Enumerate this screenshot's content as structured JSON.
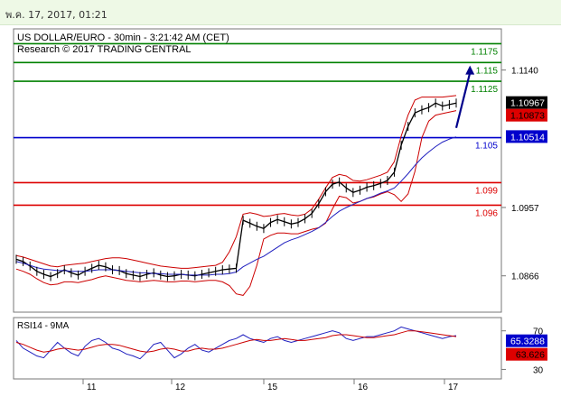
{
  "header": {
    "date_text": "พ.ค. 17, 2017, 01:21"
  },
  "chart_data": [
    {
      "type": "line",
      "title": "US DOLLAR/EURO - 30min - 3:21:42 AM (CET)",
      "subtitle": "Research © 2017 TRADING CENTRAL",
      "x_ticks": [
        "11",
        "12",
        "15",
        "16",
        "17"
      ],
      "y_ticks": [
        1.0866,
        1.0957,
        1.114
      ],
      "y_tick_labels": [
        "1.0866",
        "1.0957",
        "1.1140"
      ],
      "ylim": [
        1.082,
        1.119
      ],
      "grid": false,
      "levels": [
        {
          "value": 1.1175,
          "label": "1.1175",
          "color": "#008000"
        },
        {
          "value": 1.115,
          "label": "1.115",
          "color": "#008000"
        },
        {
          "value": 1.1125,
          "label": "1.1125",
          "color": "#008000"
        },
        {
          "value": 1.105,
          "label": "1.105",
          "color": "#0000cc"
        },
        {
          "value": 1.099,
          "label": "1.099",
          "color": "#dd0000"
        },
        {
          "value": 1.096,
          "label": "1.096",
          "color": "#dd0000"
        }
      ],
      "price_tags": [
        {
          "label": "1.10967",
          "value": 1.10967,
          "bg": "#000000",
          "fg": "#ffffff"
        },
        {
          "label": "1.10873",
          "value": 1.10873,
          "bg": "#dd0000",
          "fg": "#000000"
        },
        {
          "label": "1.10514",
          "value": 1.10514,
          "bg": "#0000cc",
          "fg": "#ffffff"
        }
      ],
      "series": [
        {
          "kind": "price",
          "color": "#000000",
          "values": [
            1.0888,
            1.0885,
            1.0879,
            1.0872,
            1.0868,
            1.0865,
            1.0869,
            1.0874,
            1.087,
            1.0867,
            1.0872,
            1.0876,
            1.088,
            1.0878,
            1.0874,
            1.0873,
            1.0869,
            1.0867,
            1.0865,
            1.0868,
            1.087,
            1.0867,
            1.0865,
            1.0866,
            1.0868,
            1.0867,
            1.0866,
            1.0868,
            1.087,
            1.0872,
            1.0874,
            1.0875,
            1.0876,
            1.094,
            1.0936,
            1.0932,
            1.0929,
            1.0937,
            1.0941,
            1.0938,
            1.0935,
            1.0937,
            1.0942,
            1.0949,
            1.0962,
            1.0978,
            1.0988,
            1.0991,
            1.0983,
            1.0977,
            1.098,
            1.0984,
            1.0986,
            1.0989,
            1.0993,
            1.1004,
            1.104,
            1.1065,
            1.1083,
            1.1087,
            1.109,
            1.1096,
            1.1092,
            1.1094,
            1.1096
          ]
        },
        {
          "kind": "bollinger-upper",
          "color": "#cc0000",
          "values": [
            1.0893,
            1.0891,
            1.0888,
            1.0885,
            1.0882,
            1.0879,
            1.0878,
            1.088,
            1.0881,
            1.0882,
            1.0883,
            1.0885,
            1.0887,
            1.0889,
            1.089,
            1.089,
            1.0889,
            1.0887,
            1.0885,
            1.0883,
            1.0881,
            1.0879,
            1.0878,
            1.0877,
            1.0876,
            1.0876,
            1.0877,
            1.0878,
            1.0879,
            1.088,
            1.0884,
            1.0898,
            1.0918,
            1.0948,
            1.095,
            1.0948,
            1.0945,
            1.0946,
            1.0948,
            1.0949,
            1.0947,
            1.0946,
            1.0948,
            1.0955,
            1.0968,
            1.0983,
            1.0997,
            1.1001,
            1.0999,
            1.0993,
            1.0992,
            1.0994,
            1.0997,
            1.1,
            1.1004,
            1.1018,
            1.1052,
            1.108,
            1.11,
            1.1104,
            1.1104,
            1.1104,
            1.1104,
            1.1105,
            1.1106
          ]
        },
        {
          "kind": "bollinger-lower",
          "color": "#cc0000",
          "values": [
            1.0875,
            1.0872,
            1.0868,
            1.0862,
            1.0857,
            1.0854,
            1.0855,
            1.0858,
            1.0858,
            1.0857,
            1.0859,
            1.0861,
            1.0864,
            1.0866,
            1.0864,
            1.0862,
            1.086,
            1.0859,
            1.0858,
            1.0859,
            1.086,
            1.0859,
            1.0858,
            1.0858,
            1.0859,
            1.0859,
            1.0858,
            1.0859,
            1.086,
            1.086,
            1.0858,
            1.0853,
            1.0842,
            1.084,
            1.0852,
            1.088,
            1.0915,
            1.092,
            1.0923,
            1.0923,
            1.0922,
            1.0922,
            1.0925,
            1.0928,
            1.093,
            1.0936,
            1.0955,
            1.0972,
            1.097,
            1.0963,
            1.0965,
            1.0969,
            1.0971,
            1.0975,
            1.0978,
            1.0974,
            1.0965,
            1.0975,
            1.1005,
            1.105,
            1.1072,
            1.108,
            1.1082,
            1.1084,
            1.1086
          ]
        },
        {
          "kind": "moving-average",
          "color": "#1f1fbf",
          "values": [
            1.0885,
            1.0883,
            1.088,
            1.0877,
            1.0875,
            1.0874,
            1.0873,
            1.0873,
            1.0872,
            1.0872,
            1.0872,
            1.0873,
            1.0874,
            1.0874,
            1.0874,
            1.0873,
            1.0872,
            1.0871,
            1.087,
            1.087,
            1.0869,
            1.0869,
            1.0868,
            1.0868,
            1.0868,
            1.0867,
            1.0867,
            1.0867,
            1.0867,
            1.0868,
            1.0868,
            1.0869,
            1.0871,
            1.0878,
            1.0883,
            1.0888,
            1.0892,
            1.0898,
            1.0904,
            1.091,
            1.0914,
            1.0917,
            1.0921,
            1.0925,
            1.093,
            1.0937,
            1.0945,
            1.0952,
            1.0957,
            1.0961,
            1.0965,
            1.0969,
            1.0972,
            1.0976,
            1.0979,
            1.0983,
            1.0992,
            1.1002,
            1.1013,
            1.1023,
            1.1031,
            1.1038,
            1.1044,
            1.1048,
            1.1051
          ]
        }
      ],
      "annotations": [
        {
          "type": "arrow",
          "from": {
            "x_index": 64,
            "value": 1.1063
          },
          "to": {
            "x_index": 66,
            "value": 1.1146
          },
          "color": "#00008b"
        }
      ]
    },
    {
      "type": "line",
      "title": "RSI14 - 9MA",
      "y_ticks": [
        70,
        30
      ],
      "y_tick_labels": [
        "70",
        "30"
      ],
      "ylim": [
        22,
        80
      ],
      "price_tags": [
        {
          "label": "65.3288",
          "value": 65.3288,
          "bg": "#0000cc",
          "fg": "#ffffff"
        },
        {
          "label": "63.626",
          "value": 63.626,
          "bg": "#dd0000",
          "fg": "#000000"
        }
      ],
      "series": [
        {
          "kind": "rsi",
          "color": "#1f1fbf",
          "values": [
            60,
            52,
            48,
            44,
            42,
            50,
            58,
            52,
            47,
            44,
            54,
            60,
            62,
            58,
            52,
            50,
            46,
            44,
            41,
            48,
            56,
            58,
            50,
            42,
            46,
            52,
            56,
            50,
            48,
            52,
            56,
            60,
            62,
            66,
            62,
            60,
            58,
            62,
            64,
            60,
            58,
            60,
            62,
            64,
            66,
            68,
            70,
            68,
            62,
            60,
            62,
            64,
            64,
            66,
            68,
            70,
            74,
            72,
            70,
            68,
            66,
            64,
            62,
            64,
            65
          ]
        },
        {
          "kind": "rsi-ma",
          "color": "#cc0000",
          "values": [
            58,
            56,
            53,
            50,
            48,
            49,
            51,
            52,
            51,
            50,
            51,
            53,
            55,
            56,
            56,
            55,
            53,
            51,
            49,
            48,
            49,
            51,
            52,
            51,
            49,
            49,
            51,
            52,
            51,
            51,
            52,
            54,
            56,
            58,
            60,
            61,
            60,
            60,
            61,
            62,
            61,
            60,
            60,
            61,
            62,
            63,
            65,
            66,
            66,
            65,
            64,
            63,
            63,
            64,
            65,
            66,
            68,
            70,
            70,
            69,
            68,
            67,
            66,
            65,
            64
          ]
        }
      ]
    }
  ]
}
